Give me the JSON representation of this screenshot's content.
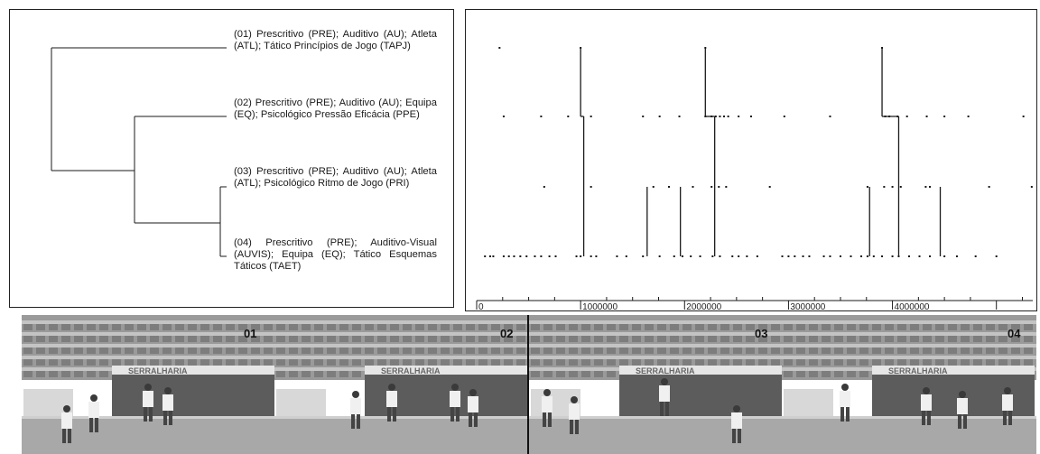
{
  "dendrogram": {
    "clusters": [
      {
        "id": "01",
        "label": "(01) Prescritivo (PRE); Auditivo (AU); Atleta (ATL); Tático Princípios de Jogo (TAPJ)"
      },
      {
        "id": "02",
        "label": "(02) Prescritivo (PRE); Auditivo (AU); Equipa (EQ); Psicológico Pressão Eficácia (PPE)"
      },
      {
        "id": "03",
        "label": "(03) Prescritivo (PRE); Auditivo (AU); Atleta (ATL); Psicológico Ritmo de Jogo (PRI)"
      },
      {
        "id": "04",
        "label": "(04) Prescritivo (PRE); Auditivo-Visual (AUVIS); Equipa (EQ); Tático Esquemas Táticos (TAET)"
      }
    ]
  },
  "chart_data": {
    "type": "scatter",
    "xlim": [
      0,
      5350000
    ],
    "x_ticks": [
      "0",
      "1000000",
      "2000000",
      "3000000",
      "4000000"
    ],
    "rows": [
      "01",
      "02",
      "03",
      "04"
    ],
    "events": {
      "01": [
        220000,
        1000000,
        2200000,
        3900000
      ],
      "02": [
        260000,
        620000,
        880000,
        1100000,
        1600000,
        1760000,
        1950000,
        2200000,
        2260000,
        2300000,
        2340000,
        2380000,
        2420000,
        2520000,
        2640000,
        2960000,
        3400000,
        3930000,
        3970000,
        4050000,
        4140000,
        4330000,
        4500000,
        4730000,
        5260000
      ],
      "03": [
        650000,
        1100000,
        1700000,
        1850000,
        2080000,
        2260000,
        2330000,
        2400000,
        2820000,
        3760000,
        3920000,
        4000000,
        4080000,
        4320000,
        4360000,
        4930000,
        5340000
      ],
      "04": [
        80000,
        130000,
        160000,
        260000,
        310000,
        360000,
        420000,
        480000,
        560000,
        620000,
        700000,
        760000,
        960000,
        1000000,
        1100000,
        1150000,
        1350000,
        1440000,
        1600000,
        1760000,
        1900000,
        1980000,
        2060000,
        2150000,
        2270000,
        2340000,
        2460000,
        2520000,
        2600000,
        2700000,
        2940000,
        3000000,
        3060000,
        3140000,
        3200000,
        3340000,
        3400000,
        3500000,
        3600000,
        3700000,
        3760000,
        3820000,
        3900000,
        4000000,
        4060000,
        4160000,
        4260000,
        4360000,
        4500000,
        4620000,
        4800000,
        5000000
      ]
    },
    "transitions": [
      {
        "x": 1000000,
        "from": "01",
        "to": "02"
      },
      {
        "x": 1030000,
        "from": "02",
        "to": "04"
      },
      {
        "x": 1640000,
        "from": "04",
        "to": "03"
      },
      {
        "x": 1960000,
        "from": "04",
        "to": "03"
      },
      {
        "x": 2200000,
        "from": "01",
        "to": "02"
      },
      {
        "x": 2290000,
        "from": "02",
        "to": "04"
      },
      {
        "x": 3780000,
        "from": "04",
        "to": "03"
      },
      {
        "x": 3900000,
        "from": "01",
        "to": "02"
      },
      {
        "x": 4060000,
        "from": "02",
        "to": "04"
      },
      {
        "x": 4460000,
        "from": "04",
        "to": "03"
      }
    ]
  },
  "frames": [
    {
      "number": "01"
    },
    {
      "number": "02"
    },
    {
      "number": "03"
    },
    {
      "number": "04"
    }
  ],
  "colors": {
    "ink": "#1a1a1a",
    "frame_grey": "#8f8f8f"
  }
}
